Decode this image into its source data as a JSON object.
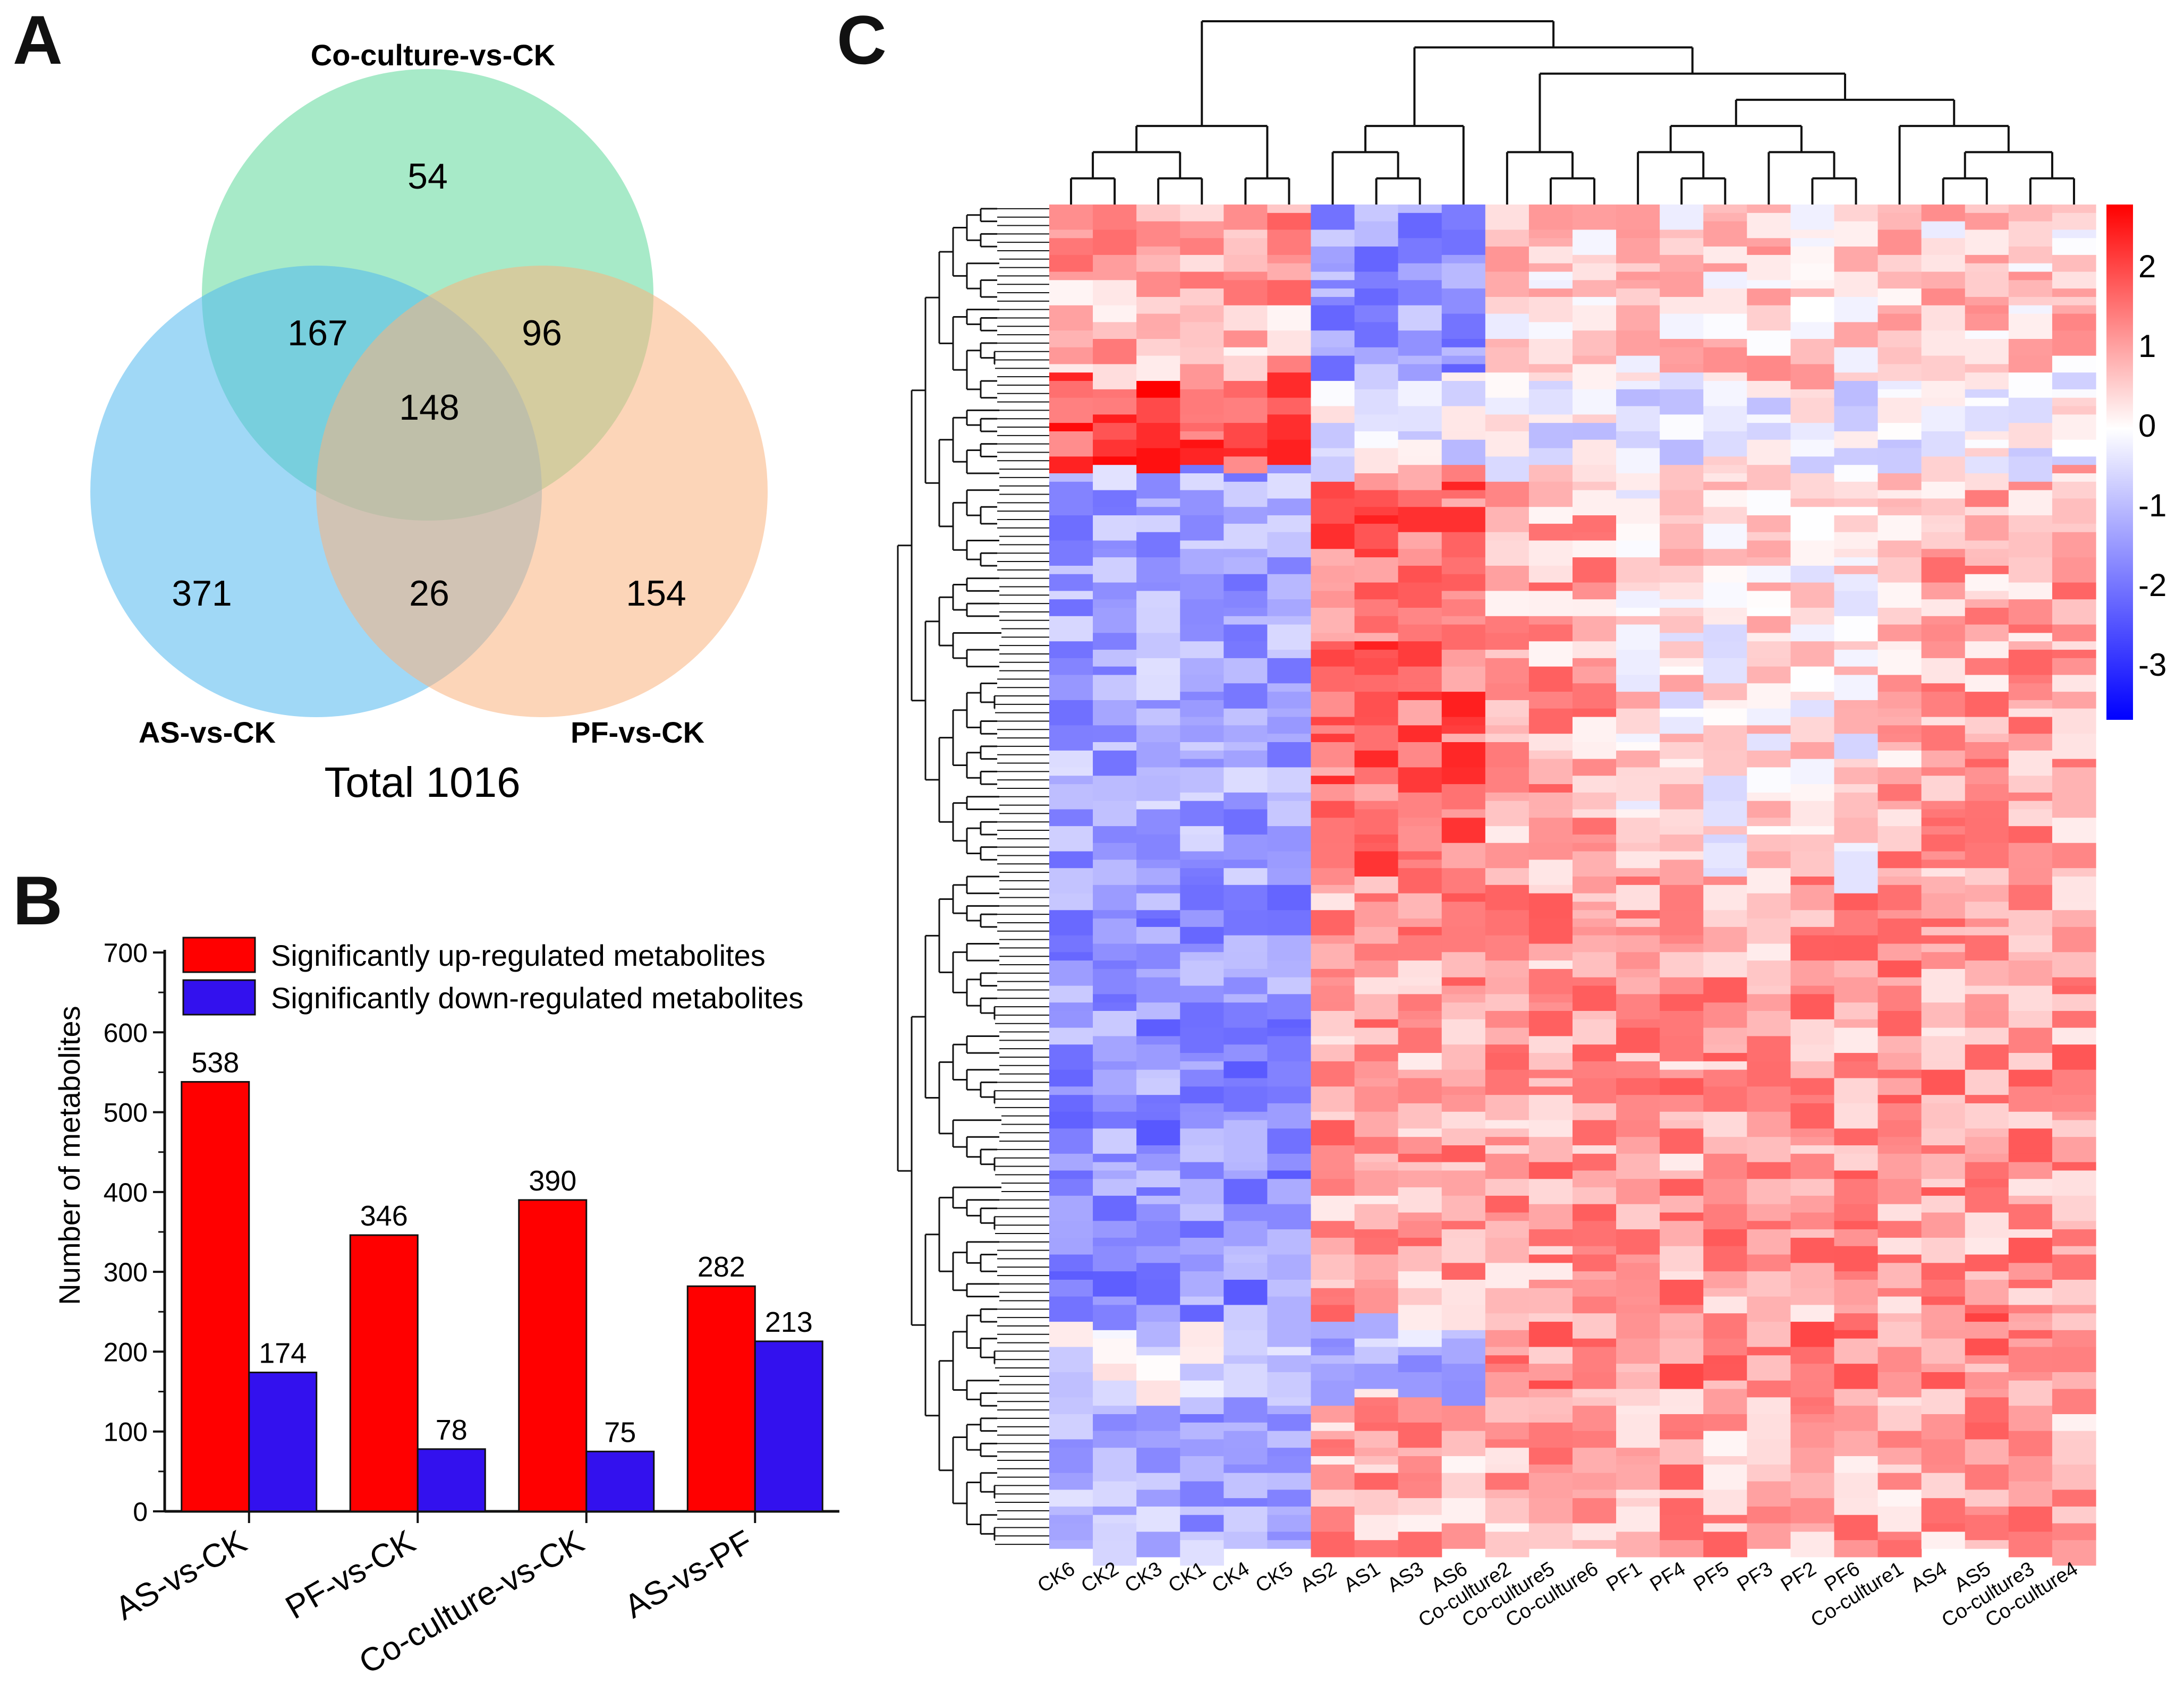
{
  "panels": {
    "a": "A",
    "b": "B",
    "c": "C"
  },
  "venn": {
    "sets": [
      {
        "name": "Co-culture-vs-CK",
        "color": "#5fd99a"
      },
      {
        "name": "AS-vs-CK",
        "color": "#52b8ee"
      },
      {
        "name": "PF-vs-CK",
        "color": "#f9b37e"
      }
    ],
    "regions": {
      "coculture_only": "54",
      "as_coculture": "167",
      "coculture_pf": "96",
      "all_three": "148",
      "as_only": "371",
      "as_pf": "26",
      "pf_only": "154"
    },
    "total_label": "Total 1016"
  },
  "chart_data": [
    {
      "type": "bar",
      "title": "",
      "xlabel": "",
      "ylabel": "Number of metabolites",
      "ylim": [
        0,
        700
      ],
      "yticks": [
        0,
        100,
        200,
        300,
        400,
        500,
        600,
        700
      ],
      "categories": [
        "AS-vs-CK",
        "PF-vs-CK",
        "Co-culture-vs-CK",
        "AS-vs-PF"
      ],
      "series": [
        {
          "name": "Significantly up-regulated metabolites",
          "color": "#ff0000",
          "values": [
            538,
            346,
            390,
            282
          ]
        },
        {
          "name": "Significantly down-regulated metabolites",
          "color": "#3311ee",
          "values": [
            174,
            78,
            75,
            213
          ]
        }
      ],
      "legend_position": "top"
    },
    {
      "type": "heatmap",
      "title": "",
      "columns": [
        "CK6",
        "CK2",
        "CK3",
        "CK1",
        "CK4",
        "CK5",
        "AS2",
        "AS1",
        "AS3",
        "AS6",
        "Co-culture2",
        "Co-culture5",
        "Co-culture6",
        "PF1",
        "PF4",
        "PF5",
        "PF3",
        "PF2",
        "PF6",
        "Co-culture1",
        "AS4",
        "AS5",
        "Co-culture3",
        "Co-culture4"
      ],
      "colorbar": {
        "min": -3.5,
        "max": 2.7,
        "ticks": [
          "2",
          "1",
          "0",
          "-1",
          "-2",
          "-3"
        ],
        "colors": [
          "#0000ff",
          "#ffffff",
          "#ff0000"
        ]
      },
      "clustering": "rows and columns (hierarchical dendrograms)"
    }
  ]
}
